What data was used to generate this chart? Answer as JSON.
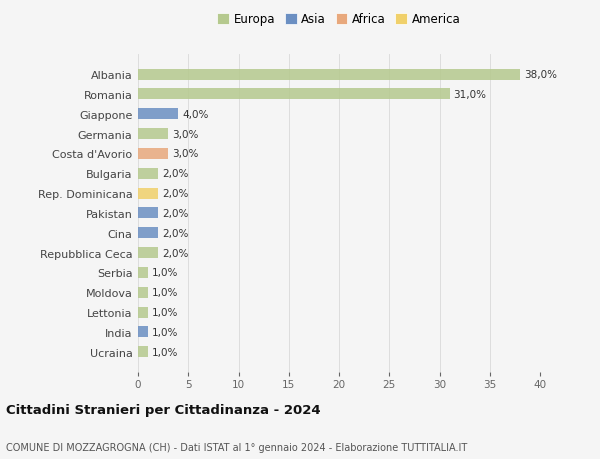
{
  "categories": [
    "Albania",
    "Romania",
    "Giappone",
    "Germania",
    "Costa d'Avorio",
    "Bulgaria",
    "Rep. Dominicana",
    "Pakistan",
    "Cina",
    "Repubblica Ceca",
    "Serbia",
    "Moldova",
    "Lettonia",
    "India",
    "Ucraina"
  ],
  "values": [
    38.0,
    31.0,
    4.0,
    3.0,
    3.0,
    2.0,
    2.0,
    2.0,
    2.0,
    2.0,
    1.0,
    1.0,
    1.0,
    1.0,
    1.0
  ],
  "labels": [
    "38,0%",
    "31,0%",
    "4,0%",
    "3,0%",
    "3,0%",
    "2,0%",
    "2,0%",
    "2,0%",
    "2,0%",
    "2,0%",
    "1,0%",
    "1,0%",
    "1,0%",
    "1,0%",
    "1,0%"
  ],
  "continents": [
    "Europa",
    "Europa",
    "Asia",
    "Europa",
    "Africa",
    "Europa",
    "America",
    "Asia",
    "Asia",
    "Europa",
    "Europa",
    "Europa",
    "Europa",
    "Asia",
    "Europa"
  ],
  "continent_colors": {
    "Europa": "#b5c98e",
    "Asia": "#6b8fc2",
    "Africa": "#e8a87c",
    "America": "#f0d06a"
  },
  "legend_order": [
    "Europa",
    "Asia",
    "Africa",
    "America"
  ],
  "xlim": [
    0,
    40
  ],
  "xticks": [
    0,
    5,
    10,
    15,
    20,
    25,
    30,
    35,
    40
  ],
  "title": "Cittadini Stranieri per Cittadinanza - 2024",
  "subtitle": "COMUNE DI MOZZAGROGNA (CH) - Dati ISTAT al 1° gennaio 2024 - Elaborazione TUTTITALIA.IT",
  "bg_color": "#f5f5f5",
  "grid_color": "#dddddd",
  "bar_height": 0.55
}
